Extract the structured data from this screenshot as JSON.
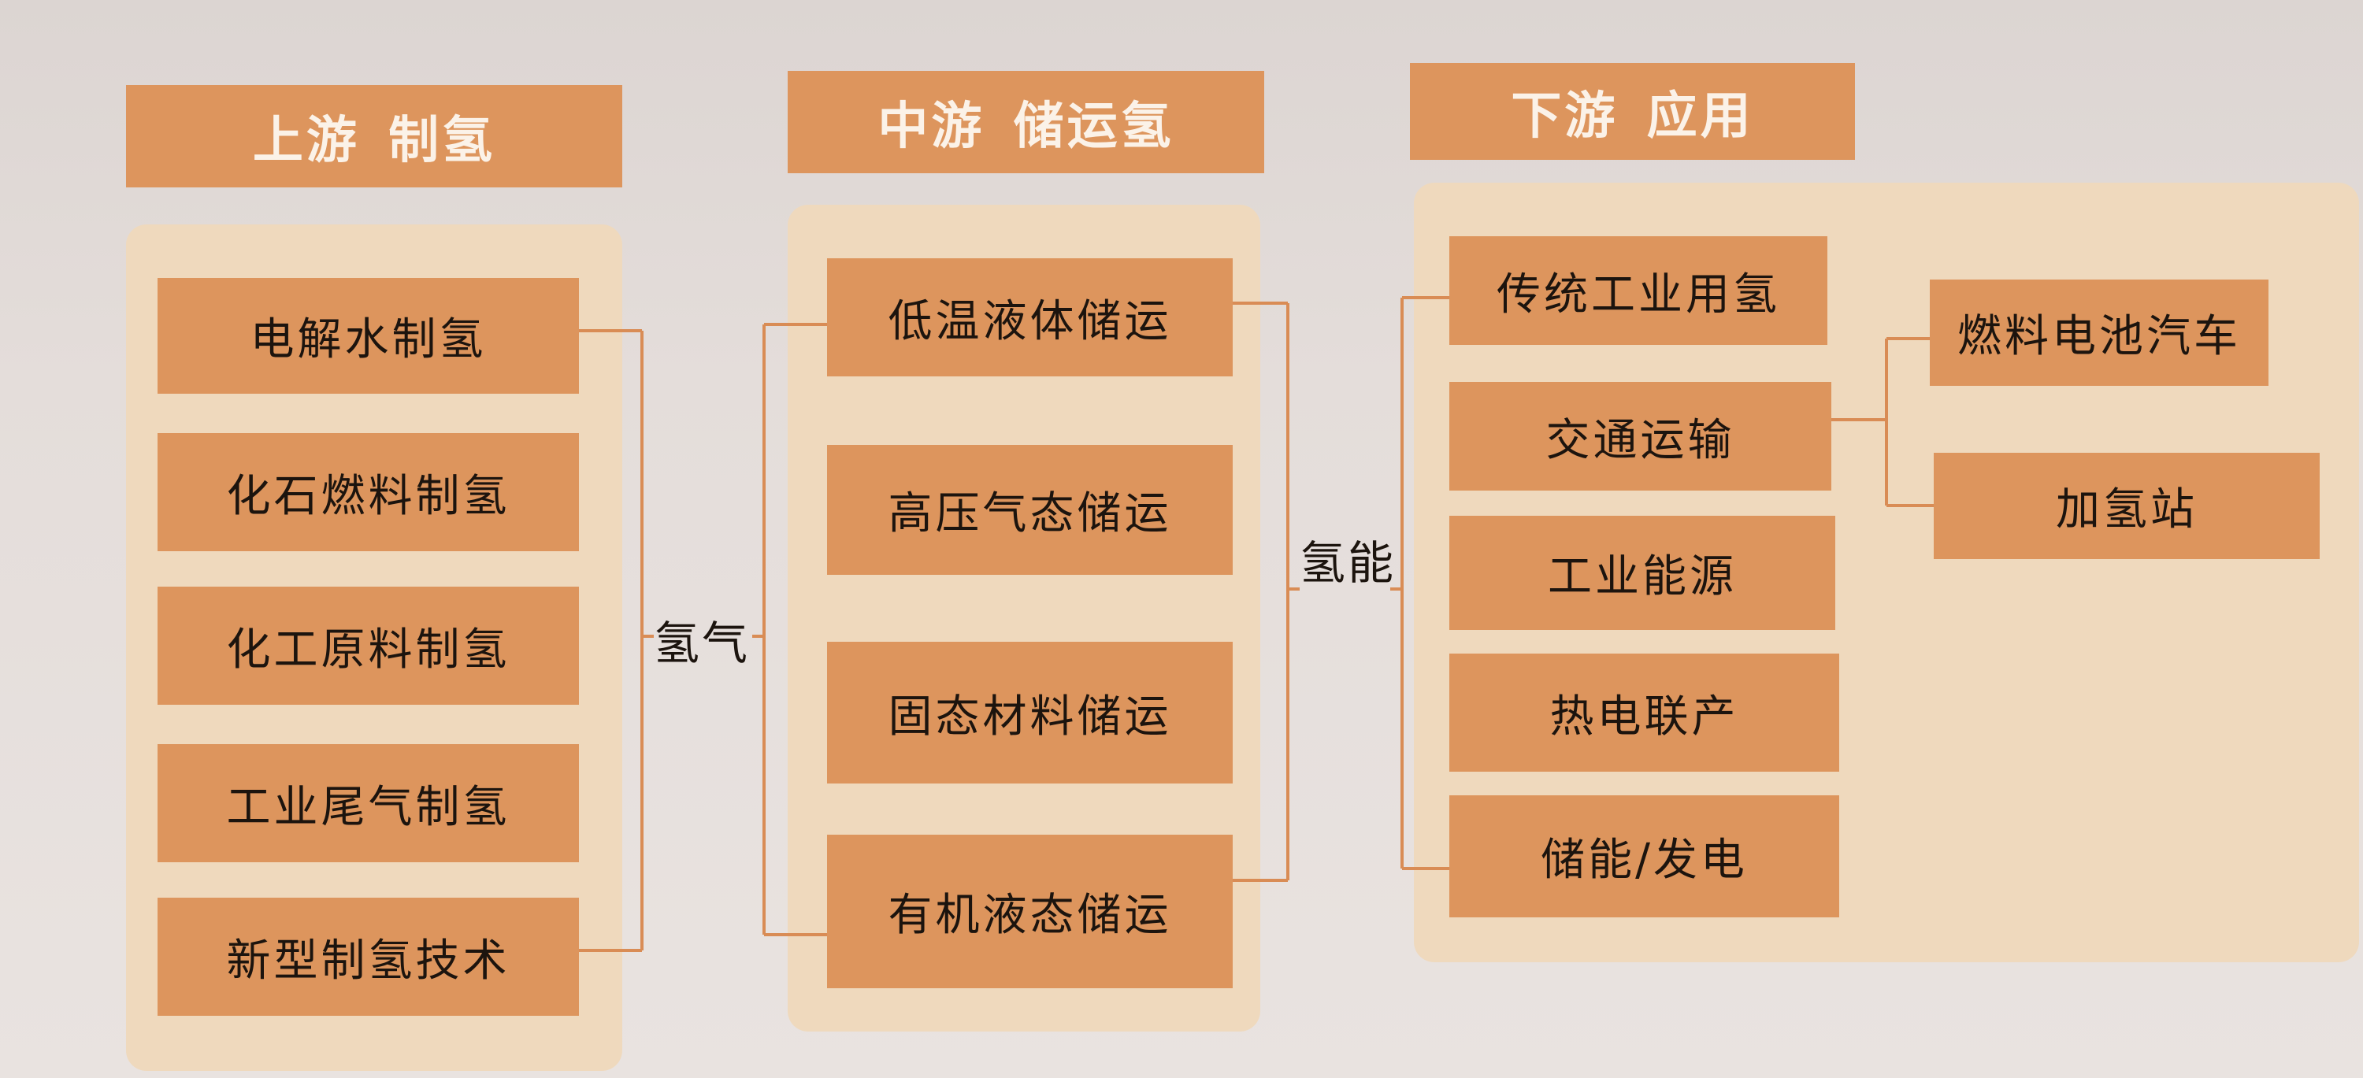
{
  "colors": {
    "box_fill": "#dd955d",
    "panel_fill": "#efd9bd",
    "connector": "#d98c55",
    "header_text": "#fbf2e8",
    "box_text": "#1c140e"
  },
  "upstream": {
    "header": "上游 制氢",
    "items": [
      "电解水制氢",
      "化石燃料制氢",
      "化工原料制氢",
      "工业尾气制氢",
      "新型制氢技术"
    ]
  },
  "midstream": {
    "header": "中游 储运氢",
    "items": [
      "低温液体储运",
      "高压气态储运",
      "固态材料储运",
      "有机液态储运"
    ]
  },
  "downstream": {
    "header": "下游 应用",
    "items": [
      "传统工业用氢",
      "交通运输",
      "工业能源",
      "热电联产",
      "储能/发电"
    ],
    "transport_branches": [
      "燃料电池汽车",
      "加氢站"
    ]
  },
  "connectors": {
    "upstream_to_midstream": "氢气",
    "midstream_to_downstream": "氢能"
  }
}
